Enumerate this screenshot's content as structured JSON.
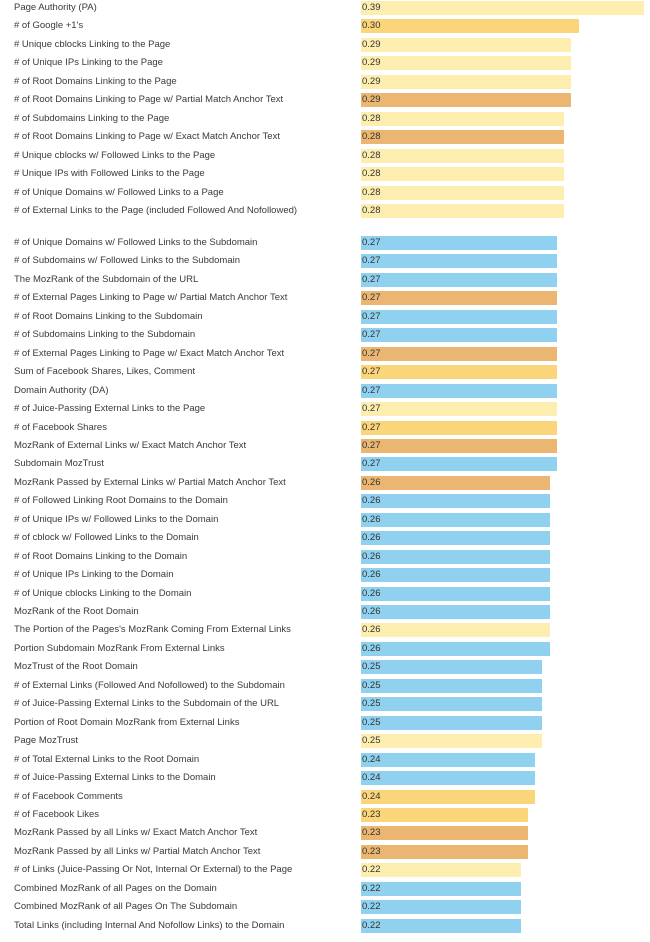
{
  "chart_data": {
    "type": "bar",
    "orientation": "horizontal",
    "grid": false,
    "categories": [
      "Page Authority (PA)",
      "# of Google +1's",
      "# Unique cblocks Linking to the Page",
      "# of Unique IPs Linking to the Page",
      "# of Root Domains Linking to the Page",
      "# of Root Domains Linking to Page w/ Partial Match Anchor Text",
      "# of Subdomains Linking to the Page",
      "# of Root Domains Linking to Page w/ Exact Match Anchor Text",
      "# Unique cblocks w/ Followed Links to the Page",
      "# Unique IPs with Followed Links to the Page",
      "# of Unique Domains w/ Followed Links to a Page",
      "# of External Links to the Page (included Followed And Nofollowed)",
      "# of Unique Domains w/ Followed Links to the Subdomain",
      "# of Subdomains w/ Followed Links to the Subdomain",
      "The MozRank of the Subdomain of the URL",
      "# of External Pages Linking to Page w/ Partial Match Anchor Text",
      "# of Root Domains Linking to the Subdomain",
      "# of Subdomains Linking to the Subdomain",
      "# of External Pages Linking to Page w/ Exact Match Anchor Text",
      "Sum of Facebook Shares, Likes, Comment",
      "Domain Authority (DA)",
      "# of Juice-Passing External Links to the Page",
      "# of Facebook Shares",
      "MozRank of External Links w/ Exact Match Anchor Text",
      "Subdomain MozTrust",
      "MozRank Passed by External Links w/ Partial Match Anchor Text",
      "# of Followed Linking Root Domains to the Domain",
      "# of Unique IPs w/ Followed Links to the Domain",
      "# of cblock w/ Followed Links to the Domain",
      "# of Root Domains Linking to the Domain",
      "# of Unique IPs Linking to the Domain",
      "# of Unique cblocks Linking to the Domain",
      "MozRank of the Root Domain",
      "The Portion of the Pages's MozRank Coming From External Links",
      "Portion Subdomain MozRank From External Links",
      "MozTrust of the Root Domain",
      "# of External Links (Followed And Nofollowed) to the Subdomain",
      "# of Juice-Passing External Links to the Subdomain of the URL",
      "Portion of Root Domain MozRank from External Links",
      "Page MozTrust",
      "# of Total External Links to the Root Domain",
      "# of Juice-Passing External Links to the Domain",
      "# of Facebook Comments",
      "# of Facebook Likes",
      "MozRank Passed by all Links w/ Exact Match Anchor Text",
      "MozRank Passed by all Links w/ Partial Match Anchor Text",
      "# of Links (Juice-Passing Or Not, Internal Or External) to the Page",
      "Combined MozRank of all Pages on the Domain",
      "Combined MozRank of all Pages On The Subdomain",
      "Total Links (including Internal And Nofollow Links) to the Domain"
    ],
    "values": [
      0.39,
      0.3,
      0.29,
      0.29,
      0.29,
      0.29,
      0.28,
      0.28,
      0.28,
      0.28,
      0.28,
      0.28,
      0.27,
      0.27,
      0.27,
      0.27,
      0.27,
      0.27,
      0.27,
      0.27,
      0.27,
      0.27,
      0.27,
      0.27,
      0.27,
      0.26,
      0.26,
      0.26,
      0.26,
      0.26,
      0.26,
      0.26,
      0.26,
      0.26,
      0.26,
      0.25,
      0.25,
      0.25,
      0.25,
      0.25,
      0.24,
      0.24,
      0.24,
      0.23,
      0.23,
      0.23,
      0.22,
      0.22,
      0.22,
      0.22
    ],
    "value_labels": [
      "0.39",
      "0.30",
      "0.29",
      "0.29",
      "0.29",
      "0.29",
      "0.28",
      "0.28",
      "0.28",
      "0.28",
      "0.28",
      "0.28",
      "0.27",
      "0.27",
      "0.27",
      "0.27",
      "0.27",
      "0.27",
      "0.27",
      "0.27",
      "0.27",
      "0.27",
      "0.27",
      "0.27",
      "0.27",
      "0.26",
      "0.26",
      "0.26",
      "0.26",
      "0.26",
      "0.26",
      "0.26",
      "0.26",
      "0.26",
      "0.26",
      "0.25",
      "0.25",
      "0.25",
      "0.25",
      "0.25",
      "0.24",
      "0.24",
      "0.24",
      "0.23",
      "0.23",
      "0.23",
      "0.22",
      "0.22",
      "0.22",
      "0.22"
    ],
    "color_groups": [
      "light",
      "gold",
      "light",
      "light",
      "light",
      "orange",
      "light",
      "orange",
      "light",
      "light",
      "light",
      "light",
      "blue",
      "blue",
      "blue",
      "orange",
      "blue",
      "blue",
      "orange",
      "gold",
      "blue",
      "light",
      "gold",
      "orange",
      "blue",
      "orange",
      "blue",
      "blue",
      "blue",
      "blue",
      "blue",
      "blue",
      "blue",
      "light",
      "blue",
      "blue",
      "blue",
      "blue",
      "blue",
      "light",
      "blue",
      "blue",
      "gold",
      "gold",
      "orange",
      "orange",
      "light",
      "blue",
      "blue",
      "blue"
    ],
    "colors": {
      "light": "#fdeeaf",
      "gold": "#fad57a",
      "orange": "#ebb671",
      "blue": "#8fd1ef"
    },
    "xlim": [
      0.0,
      0.39
    ]
  }
}
